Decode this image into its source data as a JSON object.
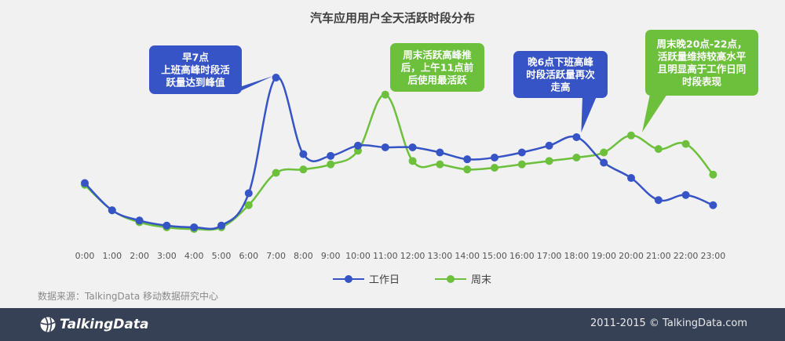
{
  "colors": {
    "weekday": "#3654c6",
    "weekend": "#6cc03c",
    "footer_bg": "#374156"
  },
  "source": "数据来源：TalkingData 移动数据研究中心",
  "footer": {
    "logo_text": "TalkingData",
    "copyright": "2011-2015 © TalkingData.com"
  },
  "chart_data": {
    "type": "line",
    "title": "汽车应用用户全天活跃时段分布",
    "xlabel": "",
    "ylabel": "",
    "y_axis_shown": false,
    "grid": false,
    "legend_position": "bottom",
    "categories": [
      "0:00",
      "1:00",
      "2:00",
      "3:00",
      "4:00",
      "5:00",
      "6:00",
      "7:00",
      "8:00",
      "9:00",
      "10:00",
      "11:00",
      "12:00",
      "13:00",
      "14:00",
      "15:00",
      "16:00",
      "17:00",
      "18:00",
      "19:00",
      "20:00",
      "21:00",
      "22:00",
      "23:00"
    ],
    "series": [
      {
        "name": "工作日",
        "color": "#3654c6",
        "values": [
          38,
          22,
          16,
          13,
          12,
          13,
          32,
          100,
          55,
          54,
          60,
          59,
          59,
          56,
          52,
          53,
          56,
          60,
          65,
          50,
          41,
          28,
          31,
          25
        ]
      },
      {
        "name": "周末",
        "color": "#6cc03c",
        "values": [
          37,
          22,
          15,
          12,
          11,
          12,
          25,
          44,
          46,
          49,
          57,
          90,
          51,
          49,
          46,
          47,
          49,
          51,
          53,
          56,
          66,
          58,
          61,
          43
        ]
      }
    ],
    "annotations": [
      {
        "text": "早7点\n上班高峰时段活\n跃量达到峰值",
        "series": "工作日",
        "x": "7:00",
        "color": "#3654c6"
      },
      {
        "text": "周末活跃高峰推\n后，上午11点前\n后使用最活跃",
        "series": "周末",
        "x": "11:00",
        "color": "#6cc03c"
      },
      {
        "text": "晚6点下班高峰\n时段活跃量再次\n走高",
        "series": "工作日",
        "x": "18:00",
        "color": "#3654c6"
      },
      {
        "text": "周末晚20点-22点，\n活跃量维持较高水平\n且明显高于工作日同\n时段表现",
        "series": "周末",
        "x": "20:00",
        "color": "#6cc03c"
      }
    ]
  }
}
